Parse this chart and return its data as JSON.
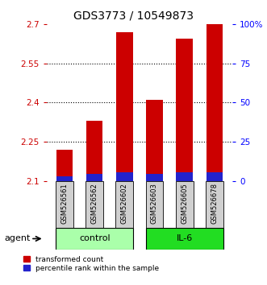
{
  "title": "GDS3773 / 10549873",
  "samples": [
    "GSM526561",
    "GSM526562",
    "GSM526602",
    "GSM526603",
    "GSM526605",
    "GSM526678"
  ],
  "transformed_counts": [
    2.22,
    2.33,
    2.67,
    2.41,
    2.645,
    2.7
  ],
  "percentile_ranks_pct": [
    3.0,
    4.5,
    5.5,
    4.5,
    5.5,
    5.5
  ],
  "bar_base": 2.1,
  "ymin": 2.1,
  "ymax": 2.7,
  "ylim_right": [
    0,
    100
  ],
  "yticks_left": [
    2.1,
    2.25,
    2.4,
    2.55,
    2.7
  ],
  "yticks_right": [
    0,
    25,
    50,
    75,
    100
  ],
  "ytick_labels_left": [
    "2.1",
    "2.25",
    "2.4",
    "2.55",
    "2.7"
  ],
  "ytick_labels_right": [
    "0",
    "25",
    "50",
    "75",
    "100%"
  ],
  "groups": [
    {
      "name": "control",
      "indices": [
        0,
        1,
        2
      ],
      "color": "#aaffaa"
    },
    {
      "name": "IL-6",
      "indices": [
        3,
        4,
        5
      ],
      "color": "#22dd22"
    }
  ],
  "bar_color_red": "#cc0000",
  "bar_color_blue": "#2222cc",
  "bar_width": 0.55,
  "grid_color": "black",
  "agent_label": "agent",
  "legend_red": "transformed count",
  "legend_blue": "percentile rank within the sample",
  "title_fontsize": 10,
  "tick_fontsize": 7.5,
  "sample_fontsize": 6,
  "group_fontsize": 8,
  "legend_fontsize": 6.5
}
